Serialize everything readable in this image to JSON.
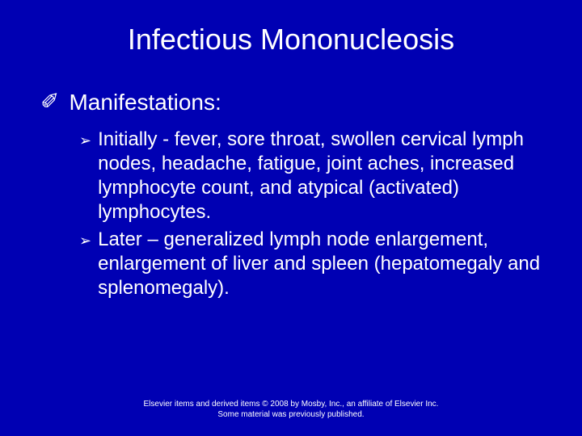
{
  "background_color": "#0000b3",
  "text_color": "#ffffff",
  "title": {
    "text": "Infectious Mononucleosis",
    "fontsize": 36,
    "align": "center"
  },
  "body": {
    "level1": {
      "bullet_glyph": "✐",
      "items": [
        {
          "text": "Manifestations:",
          "fontsize": 28,
          "children": [
            {
              "bullet_glyph": "➢",
              "text": "Initially - fever, sore throat, swollen cervical lymph nodes, headache, fatigue, joint aches, increased lymphocyte count, and atypical (activated) lymphocytes.",
              "fontsize": 24
            },
            {
              "bullet_glyph": "➢",
              "text": "Later – generalized lymph node enlargement, enlargement of liver and spleen (hepatomegaly and splenomegaly).",
              "fontsize": 24
            }
          ]
        }
      ]
    }
  },
  "footer": {
    "line1": "Elsevier items and derived items © 2008 by Mosby, Inc., an affiliate of Elsevier Inc.",
    "line2": "Some material was previously published.",
    "fontsize": 10
  }
}
